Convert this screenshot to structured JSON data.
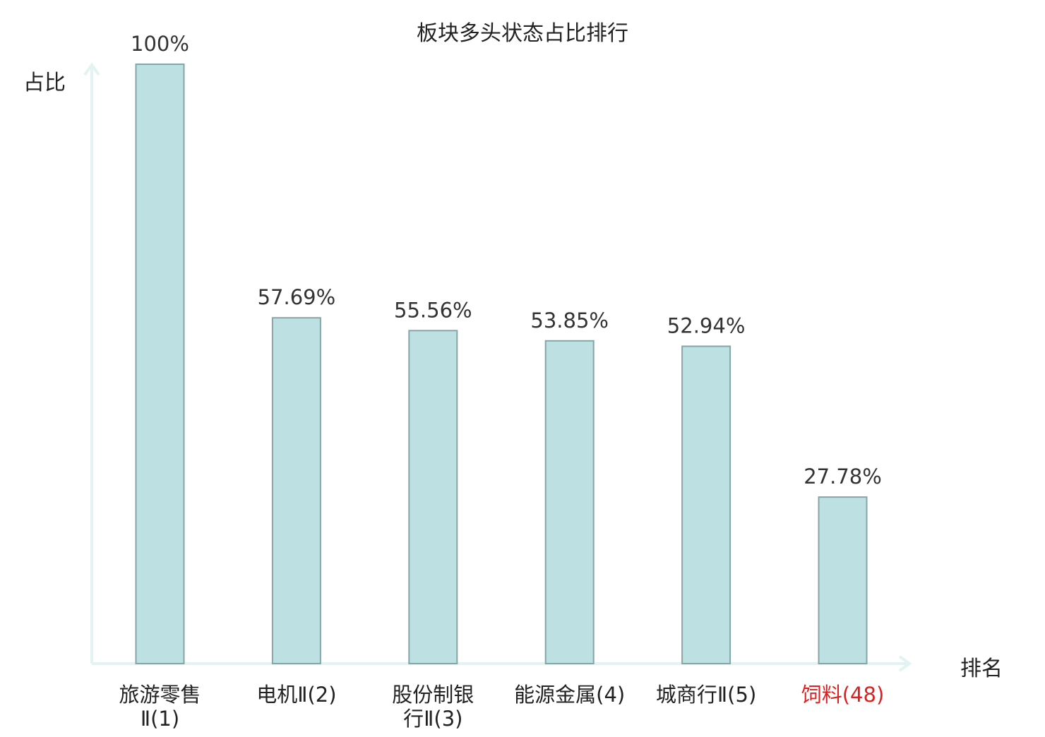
{
  "chart_data": {
    "type": "bar",
    "title": "板块多头状态占比排行",
    "ylabel": "占比",
    "xlabel": "排名",
    "ylim": [
      0,
      100
    ],
    "grid": false,
    "categories": [
      [
        "旅游零售",
        "Ⅱ(1)"
      ],
      [
        "电机Ⅱ(2)"
      ],
      [
        "股份制银",
        "行Ⅱ(3)"
      ],
      [
        "能源金属(4)"
      ],
      [
        "城商行Ⅱ(5)"
      ],
      [
        "饲料(48)"
      ]
    ],
    "values": [
      100,
      57.69,
      55.56,
      53.85,
      52.94,
      27.78
    ],
    "value_labels": [
      "100%",
      "57.69%",
      "55.56%",
      "53.85%",
      "52.94%",
      "27.78%"
    ],
    "highlight_index": 5,
    "colors": {
      "bar_fill": "#bde0e3",
      "bar_stroke": "#86a5a8",
      "axis": "#e2f3f1",
      "text": "#222222",
      "value_text": "#333333",
      "highlight": "#e02020"
    }
  }
}
